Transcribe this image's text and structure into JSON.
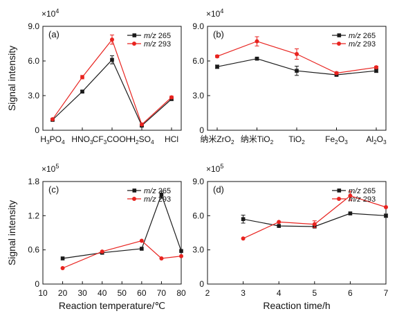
{
  "chart_data": [
    {
      "type": "line",
      "panel_label": "(a)",
      "ylabel": "Signal intensity",
      "xlabel": "",
      "x_axis": "category",
      "categories": [
        "H3PO4",
        "HNO3",
        "CF3COOH",
        "H2SO4",
        "HCl"
      ],
      "category_labels": [
        [
          {
            "t": "H"
          },
          {
            "t": "3",
            "sub": true
          },
          {
            "t": "PO"
          },
          {
            "t": "4",
            "sub": true
          }
        ],
        [
          {
            "t": "HNO"
          },
          {
            "t": "3",
            "sub": true
          }
        ],
        [
          {
            "t": "CF"
          },
          {
            "t": "3",
            "sub": true
          },
          {
            "t": "COOH"
          }
        ],
        [
          {
            "t": "H"
          },
          {
            "t": "2",
            "sub": true
          },
          {
            "t": "SO"
          },
          {
            "t": "4",
            "sub": true
          }
        ],
        [
          {
            "t": "HCl"
          }
        ]
      ],
      "scale_label": "×10",
      "scale_exponent": "4",
      "ylim": [
        0,
        9.0
      ],
      "yticks": [
        0,
        3.0,
        6.0,
        9.0
      ],
      "ytick_labels": [
        "0",
        "3.0",
        "6.0",
        "9.0"
      ],
      "legend_position": "top-right",
      "series": [
        {
          "name_prefix": "m/z",
          "name_value": "265",
          "color": "#1a1a1a",
          "marker": "square",
          "values": [
            0.9,
            3.35,
            6.1,
            0.4,
            2.7
          ],
          "errors": [
            0.05,
            0.1,
            0.35,
            0.05,
            0.1
          ]
        },
        {
          "name_prefix": "m/z",
          "name_value": "293",
          "color": "#e8231f",
          "marker": "circle",
          "values": [
            0.95,
            4.6,
            7.85,
            0.5,
            2.85
          ],
          "errors": [
            0.05,
            0.15,
            0.4,
            0.05,
            0.1
          ]
        }
      ]
    },
    {
      "type": "line",
      "panel_label": "(b)",
      "ylabel": "",
      "xlabel": "",
      "x_axis": "category",
      "categories": [
        "纳米ZrO2",
        "纳米TiO2",
        "TiO2",
        "Fe2O3",
        "Al2O3"
      ],
      "category_labels": [
        [
          {
            "t": "纳米ZrO"
          },
          {
            "t": "2",
            "sub": true
          }
        ],
        [
          {
            "t": "纳米TiO"
          },
          {
            "t": "2",
            "sub": true
          }
        ],
        [
          {
            "t": "TiO"
          },
          {
            "t": "2",
            "sub": true
          }
        ],
        [
          {
            "t": "Fe"
          },
          {
            "t": "2",
            "sub": true
          },
          {
            "t": "O"
          },
          {
            "t": "3",
            "sub": true
          }
        ],
        [
          {
            "t": "Al"
          },
          {
            "t": "2",
            "sub": true
          },
          {
            "t": "O"
          },
          {
            "t": "3",
            "sub": true
          }
        ]
      ],
      "scale_label": "×10",
      "scale_exponent": "4",
      "ylim": [
        0,
        9.0
      ],
      "yticks": [
        0,
        3.0,
        6.0,
        9.0
      ],
      "ytick_labels": [
        "0",
        "3.0",
        "6.0",
        "9.0"
      ],
      "legend_position": "top-right",
      "series": [
        {
          "name_prefix": "m/z",
          "name_value": "265",
          "color": "#1a1a1a",
          "marker": "square",
          "values": [
            5.5,
            6.2,
            5.15,
            4.8,
            5.15
          ],
          "errors": [
            0.15,
            0.1,
            0.4,
            0.1,
            0.15
          ]
        },
        {
          "name_prefix": "m/z",
          "name_value": "293",
          "color": "#e8231f",
          "marker": "circle",
          "values": [
            6.4,
            7.7,
            6.6,
            4.95,
            5.45
          ],
          "errors": [
            0.1,
            0.4,
            0.45,
            0.1,
            0.1
          ]
        }
      ]
    },
    {
      "type": "line",
      "panel_label": "(c)",
      "ylabel": "Signal intensity",
      "xlabel": "Reaction temperature/℃",
      "x_axis": "numeric",
      "xlim": [
        10,
        80
      ],
      "xticks": [
        10,
        20,
        30,
        40,
        50,
        60,
        70,
        80
      ],
      "scale_label": "×10",
      "scale_exponent": "5",
      "ylim": [
        0,
        1.8
      ],
      "yticks": [
        0,
        0.6,
        1.2,
        1.8
      ],
      "ytick_labels": [
        "0",
        "0.6",
        "1.2",
        "1.8"
      ],
      "legend_position": "top-right",
      "series": [
        {
          "name_prefix": "m/z",
          "name_value": "265",
          "color": "#1a1a1a",
          "marker": "square",
          "x": [
            20,
            40,
            60,
            70,
            80
          ],
          "values": [
            0.45,
            0.55,
            0.62,
            1.57,
            0.58
          ],
          "errors": [
            0,
            0,
            0,
            0.06,
            0
          ]
        },
        {
          "name_prefix": "m/z",
          "name_value": "293",
          "color": "#e8231f",
          "marker": "circle",
          "x": [
            20,
            40,
            60,
            70,
            80
          ],
          "values": [
            0.28,
            0.57,
            0.76,
            0.45,
            0.49
          ],
          "errors": [
            0,
            0,
            0,
            0,
            0
          ]
        }
      ]
    },
    {
      "type": "line",
      "panel_label": "(d)",
      "ylabel": "",
      "xlabel": "Reaction time/h",
      "x_axis": "numeric",
      "xlim": [
        2,
        7
      ],
      "xticks": [
        2,
        3,
        4,
        5,
        6,
        7
      ],
      "scale_label": "×10",
      "scale_exponent": "5",
      "ylim": [
        0,
        9.0
      ],
      "yticks": [
        0,
        3.0,
        6.0,
        9.0
      ],
      "ytick_labels": [
        "0",
        "3.0",
        "6.0",
        "9.0"
      ],
      "legend_position": "top-right",
      "series": [
        {
          "name_prefix": "m/z",
          "name_value": "265",
          "color": "#1a1a1a",
          "marker": "square",
          "x": [
            3,
            4,
            5,
            6,
            7
          ],
          "values": [
            5.7,
            5.1,
            5.05,
            6.2,
            6.0
          ],
          "errors": [
            0.35,
            0,
            0.1,
            0,
            0.15
          ]
        },
        {
          "name_prefix": "m/z",
          "name_value": "293",
          "color": "#e8231f",
          "marker": "circle",
          "x": [
            3,
            4,
            5,
            6,
            7
          ],
          "values": [
            4.0,
            5.45,
            5.25,
            7.75,
            6.75
          ],
          "errors": [
            0,
            0,
            0.3,
            0.4,
            0
          ]
        }
      ]
    }
  ]
}
